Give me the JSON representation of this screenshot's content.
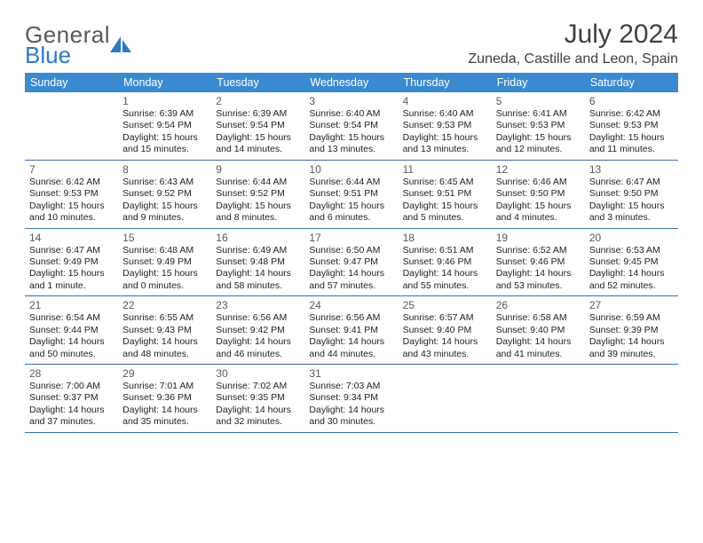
{
  "logo": {
    "word1": "General",
    "word2": "Blue"
  },
  "title": "July 2024",
  "location": "Zuneda, Castille and Leon, Spain",
  "header_bg": "#3b8ad0",
  "divider_color": "#3b6fa8",
  "days_of_week": [
    "Sunday",
    "Monday",
    "Tuesday",
    "Wednesday",
    "Thursday",
    "Friday",
    "Saturday"
  ],
  "weeks": [
    [
      null,
      {
        "n": "1",
        "sr": "Sunrise: 6:39 AM",
        "ss": "Sunset: 9:54 PM",
        "d1": "Daylight: 15 hours",
        "d2": "and 15 minutes."
      },
      {
        "n": "2",
        "sr": "Sunrise: 6:39 AM",
        "ss": "Sunset: 9:54 PM",
        "d1": "Daylight: 15 hours",
        "d2": "and 14 minutes."
      },
      {
        "n": "3",
        "sr": "Sunrise: 6:40 AM",
        "ss": "Sunset: 9:54 PM",
        "d1": "Daylight: 15 hours",
        "d2": "and 13 minutes."
      },
      {
        "n": "4",
        "sr": "Sunrise: 6:40 AM",
        "ss": "Sunset: 9:53 PM",
        "d1": "Daylight: 15 hours",
        "d2": "and 13 minutes."
      },
      {
        "n": "5",
        "sr": "Sunrise: 6:41 AM",
        "ss": "Sunset: 9:53 PM",
        "d1": "Daylight: 15 hours",
        "d2": "and 12 minutes."
      },
      {
        "n": "6",
        "sr": "Sunrise: 6:42 AM",
        "ss": "Sunset: 9:53 PM",
        "d1": "Daylight: 15 hours",
        "d2": "and 11 minutes."
      }
    ],
    [
      {
        "n": "7",
        "sr": "Sunrise: 6:42 AM",
        "ss": "Sunset: 9:53 PM",
        "d1": "Daylight: 15 hours",
        "d2": "and 10 minutes."
      },
      {
        "n": "8",
        "sr": "Sunrise: 6:43 AM",
        "ss": "Sunset: 9:52 PM",
        "d1": "Daylight: 15 hours",
        "d2": "and 9 minutes."
      },
      {
        "n": "9",
        "sr": "Sunrise: 6:44 AM",
        "ss": "Sunset: 9:52 PM",
        "d1": "Daylight: 15 hours",
        "d2": "and 8 minutes."
      },
      {
        "n": "10",
        "sr": "Sunrise: 6:44 AM",
        "ss": "Sunset: 9:51 PM",
        "d1": "Daylight: 15 hours",
        "d2": "and 6 minutes."
      },
      {
        "n": "11",
        "sr": "Sunrise: 6:45 AM",
        "ss": "Sunset: 9:51 PM",
        "d1": "Daylight: 15 hours",
        "d2": "and 5 minutes."
      },
      {
        "n": "12",
        "sr": "Sunrise: 6:46 AM",
        "ss": "Sunset: 9:50 PM",
        "d1": "Daylight: 15 hours",
        "d2": "and 4 minutes."
      },
      {
        "n": "13",
        "sr": "Sunrise: 6:47 AM",
        "ss": "Sunset: 9:50 PM",
        "d1": "Daylight: 15 hours",
        "d2": "and 3 minutes."
      }
    ],
    [
      {
        "n": "14",
        "sr": "Sunrise: 6:47 AM",
        "ss": "Sunset: 9:49 PM",
        "d1": "Daylight: 15 hours",
        "d2": "and 1 minute."
      },
      {
        "n": "15",
        "sr": "Sunrise: 6:48 AM",
        "ss": "Sunset: 9:49 PM",
        "d1": "Daylight: 15 hours",
        "d2": "and 0 minutes."
      },
      {
        "n": "16",
        "sr": "Sunrise: 6:49 AM",
        "ss": "Sunset: 9:48 PM",
        "d1": "Daylight: 14 hours",
        "d2": "and 58 minutes."
      },
      {
        "n": "17",
        "sr": "Sunrise: 6:50 AM",
        "ss": "Sunset: 9:47 PM",
        "d1": "Daylight: 14 hours",
        "d2": "and 57 minutes."
      },
      {
        "n": "18",
        "sr": "Sunrise: 6:51 AM",
        "ss": "Sunset: 9:46 PM",
        "d1": "Daylight: 14 hours",
        "d2": "and 55 minutes."
      },
      {
        "n": "19",
        "sr": "Sunrise: 6:52 AM",
        "ss": "Sunset: 9:46 PM",
        "d1": "Daylight: 14 hours",
        "d2": "and 53 minutes."
      },
      {
        "n": "20",
        "sr": "Sunrise: 6:53 AM",
        "ss": "Sunset: 9:45 PM",
        "d1": "Daylight: 14 hours",
        "d2": "and 52 minutes."
      }
    ],
    [
      {
        "n": "21",
        "sr": "Sunrise: 6:54 AM",
        "ss": "Sunset: 9:44 PM",
        "d1": "Daylight: 14 hours",
        "d2": "and 50 minutes."
      },
      {
        "n": "22",
        "sr": "Sunrise: 6:55 AM",
        "ss": "Sunset: 9:43 PM",
        "d1": "Daylight: 14 hours",
        "d2": "and 48 minutes."
      },
      {
        "n": "23",
        "sr": "Sunrise: 6:56 AM",
        "ss": "Sunset: 9:42 PM",
        "d1": "Daylight: 14 hours",
        "d2": "and 46 minutes."
      },
      {
        "n": "24",
        "sr": "Sunrise: 6:56 AM",
        "ss": "Sunset: 9:41 PM",
        "d1": "Daylight: 14 hours",
        "d2": "and 44 minutes."
      },
      {
        "n": "25",
        "sr": "Sunrise: 6:57 AM",
        "ss": "Sunset: 9:40 PM",
        "d1": "Daylight: 14 hours",
        "d2": "and 43 minutes."
      },
      {
        "n": "26",
        "sr": "Sunrise: 6:58 AM",
        "ss": "Sunset: 9:40 PM",
        "d1": "Daylight: 14 hours",
        "d2": "and 41 minutes."
      },
      {
        "n": "27",
        "sr": "Sunrise: 6:59 AM",
        "ss": "Sunset: 9:39 PM",
        "d1": "Daylight: 14 hours",
        "d2": "and 39 minutes."
      }
    ],
    [
      {
        "n": "28",
        "sr": "Sunrise: 7:00 AM",
        "ss": "Sunset: 9:37 PM",
        "d1": "Daylight: 14 hours",
        "d2": "and 37 minutes."
      },
      {
        "n": "29",
        "sr": "Sunrise: 7:01 AM",
        "ss": "Sunset: 9:36 PM",
        "d1": "Daylight: 14 hours",
        "d2": "and 35 minutes."
      },
      {
        "n": "30",
        "sr": "Sunrise: 7:02 AM",
        "ss": "Sunset: 9:35 PM",
        "d1": "Daylight: 14 hours",
        "d2": "and 32 minutes."
      },
      {
        "n": "31",
        "sr": "Sunrise: 7:03 AM",
        "ss": "Sunset: 9:34 PM",
        "d1": "Daylight: 14 hours",
        "d2": "and 30 minutes."
      },
      null,
      null,
      null
    ]
  ]
}
